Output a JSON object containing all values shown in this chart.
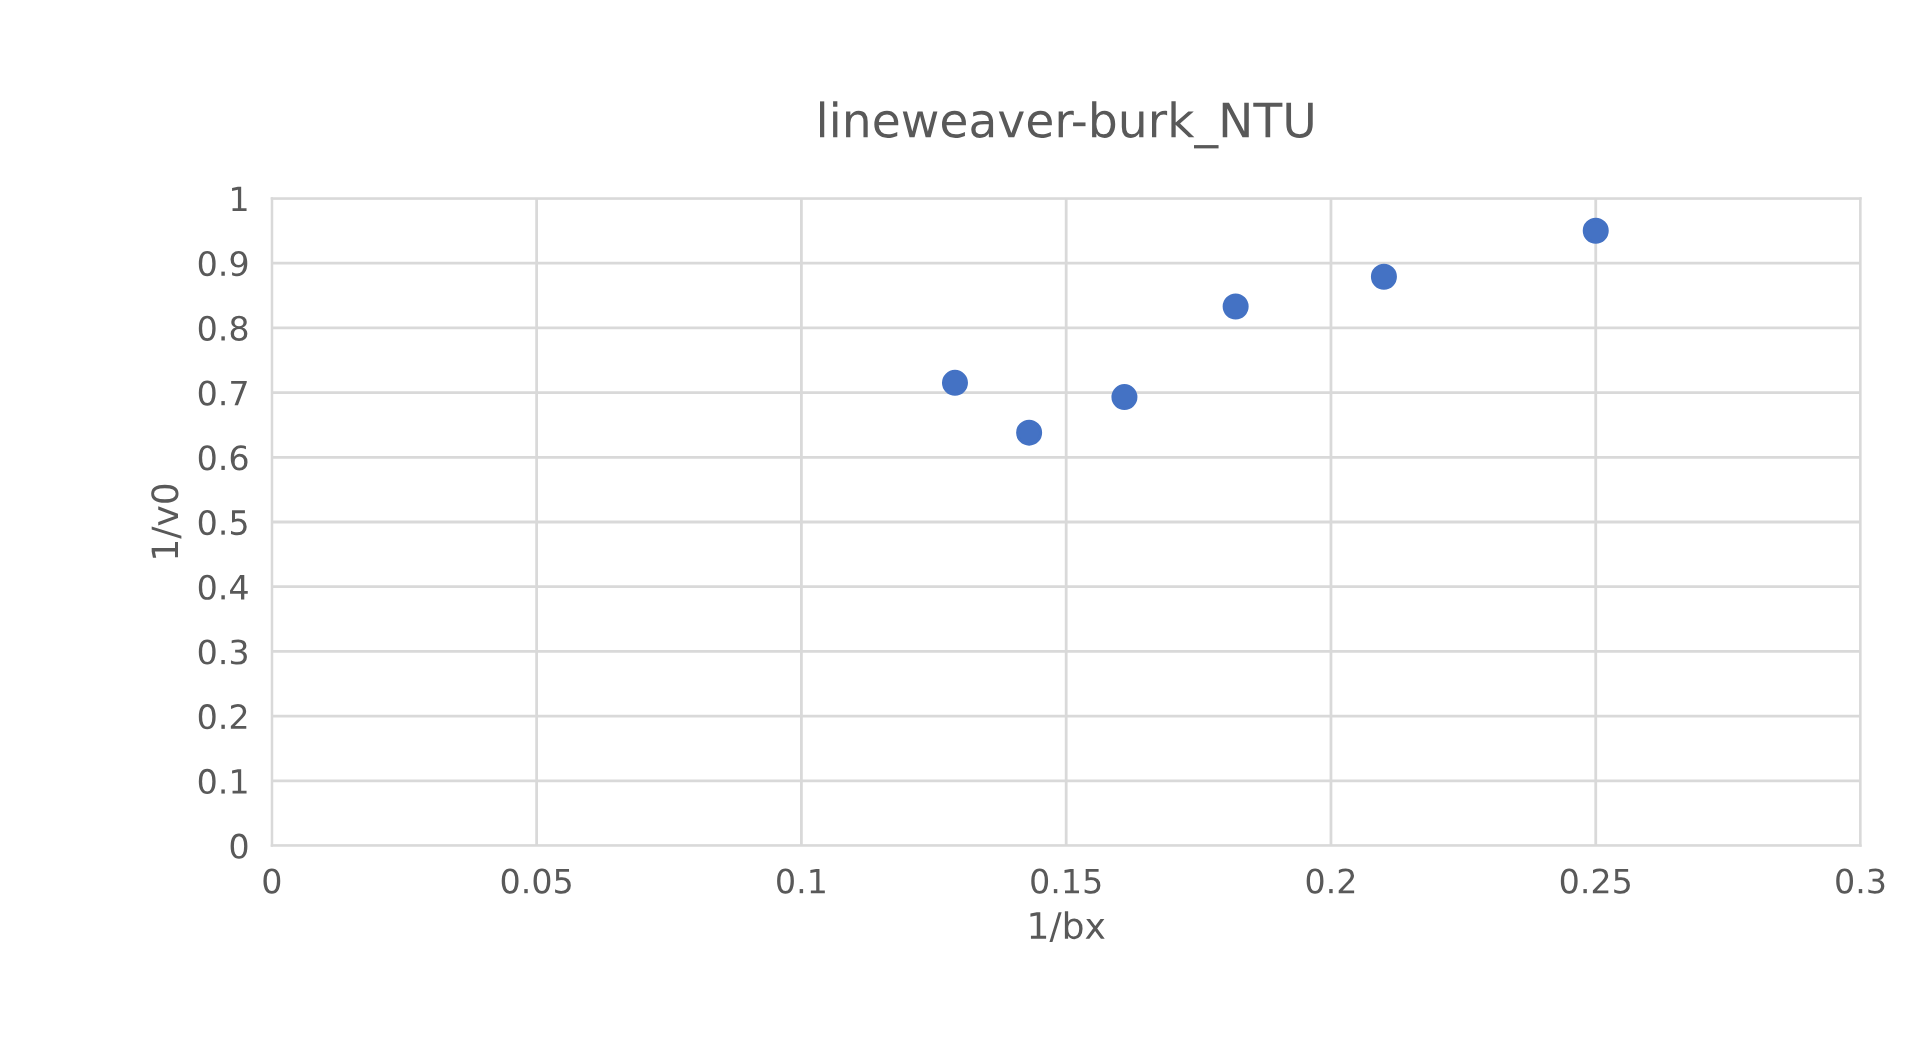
{
  "chart_data": {
    "type": "scatter",
    "title": "lineweaver-burk_NTU",
    "xlabel": "1/bx",
    "ylabel": "1/v0",
    "x": [
      0.129,
      0.143,
      0.161,
      0.182,
      0.21,
      0.25
    ],
    "series": [
      {
        "color": "#4472c4",
        "values": [
          0.715,
          0.638,
          0.693,
          0.833,
          0.879,
          0.95
        ]
      }
    ],
    "xlim": [
      0,
      0.3
    ],
    "xticks": [
      0,
      0.05,
      0.1,
      0.15,
      0.2,
      0.25,
      0.3
    ],
    "ylim": [
      0,
      1
    ],
    "yticks": [
      0,
      0.1,
      0.2,
      0.3,
      0.4,
      0.5,
      0.6,
      0.7,
      0.8,
      0.9,
      1
    ],
    "grid": true,
    "marker": "circle",
    "legend": false
  }
}
